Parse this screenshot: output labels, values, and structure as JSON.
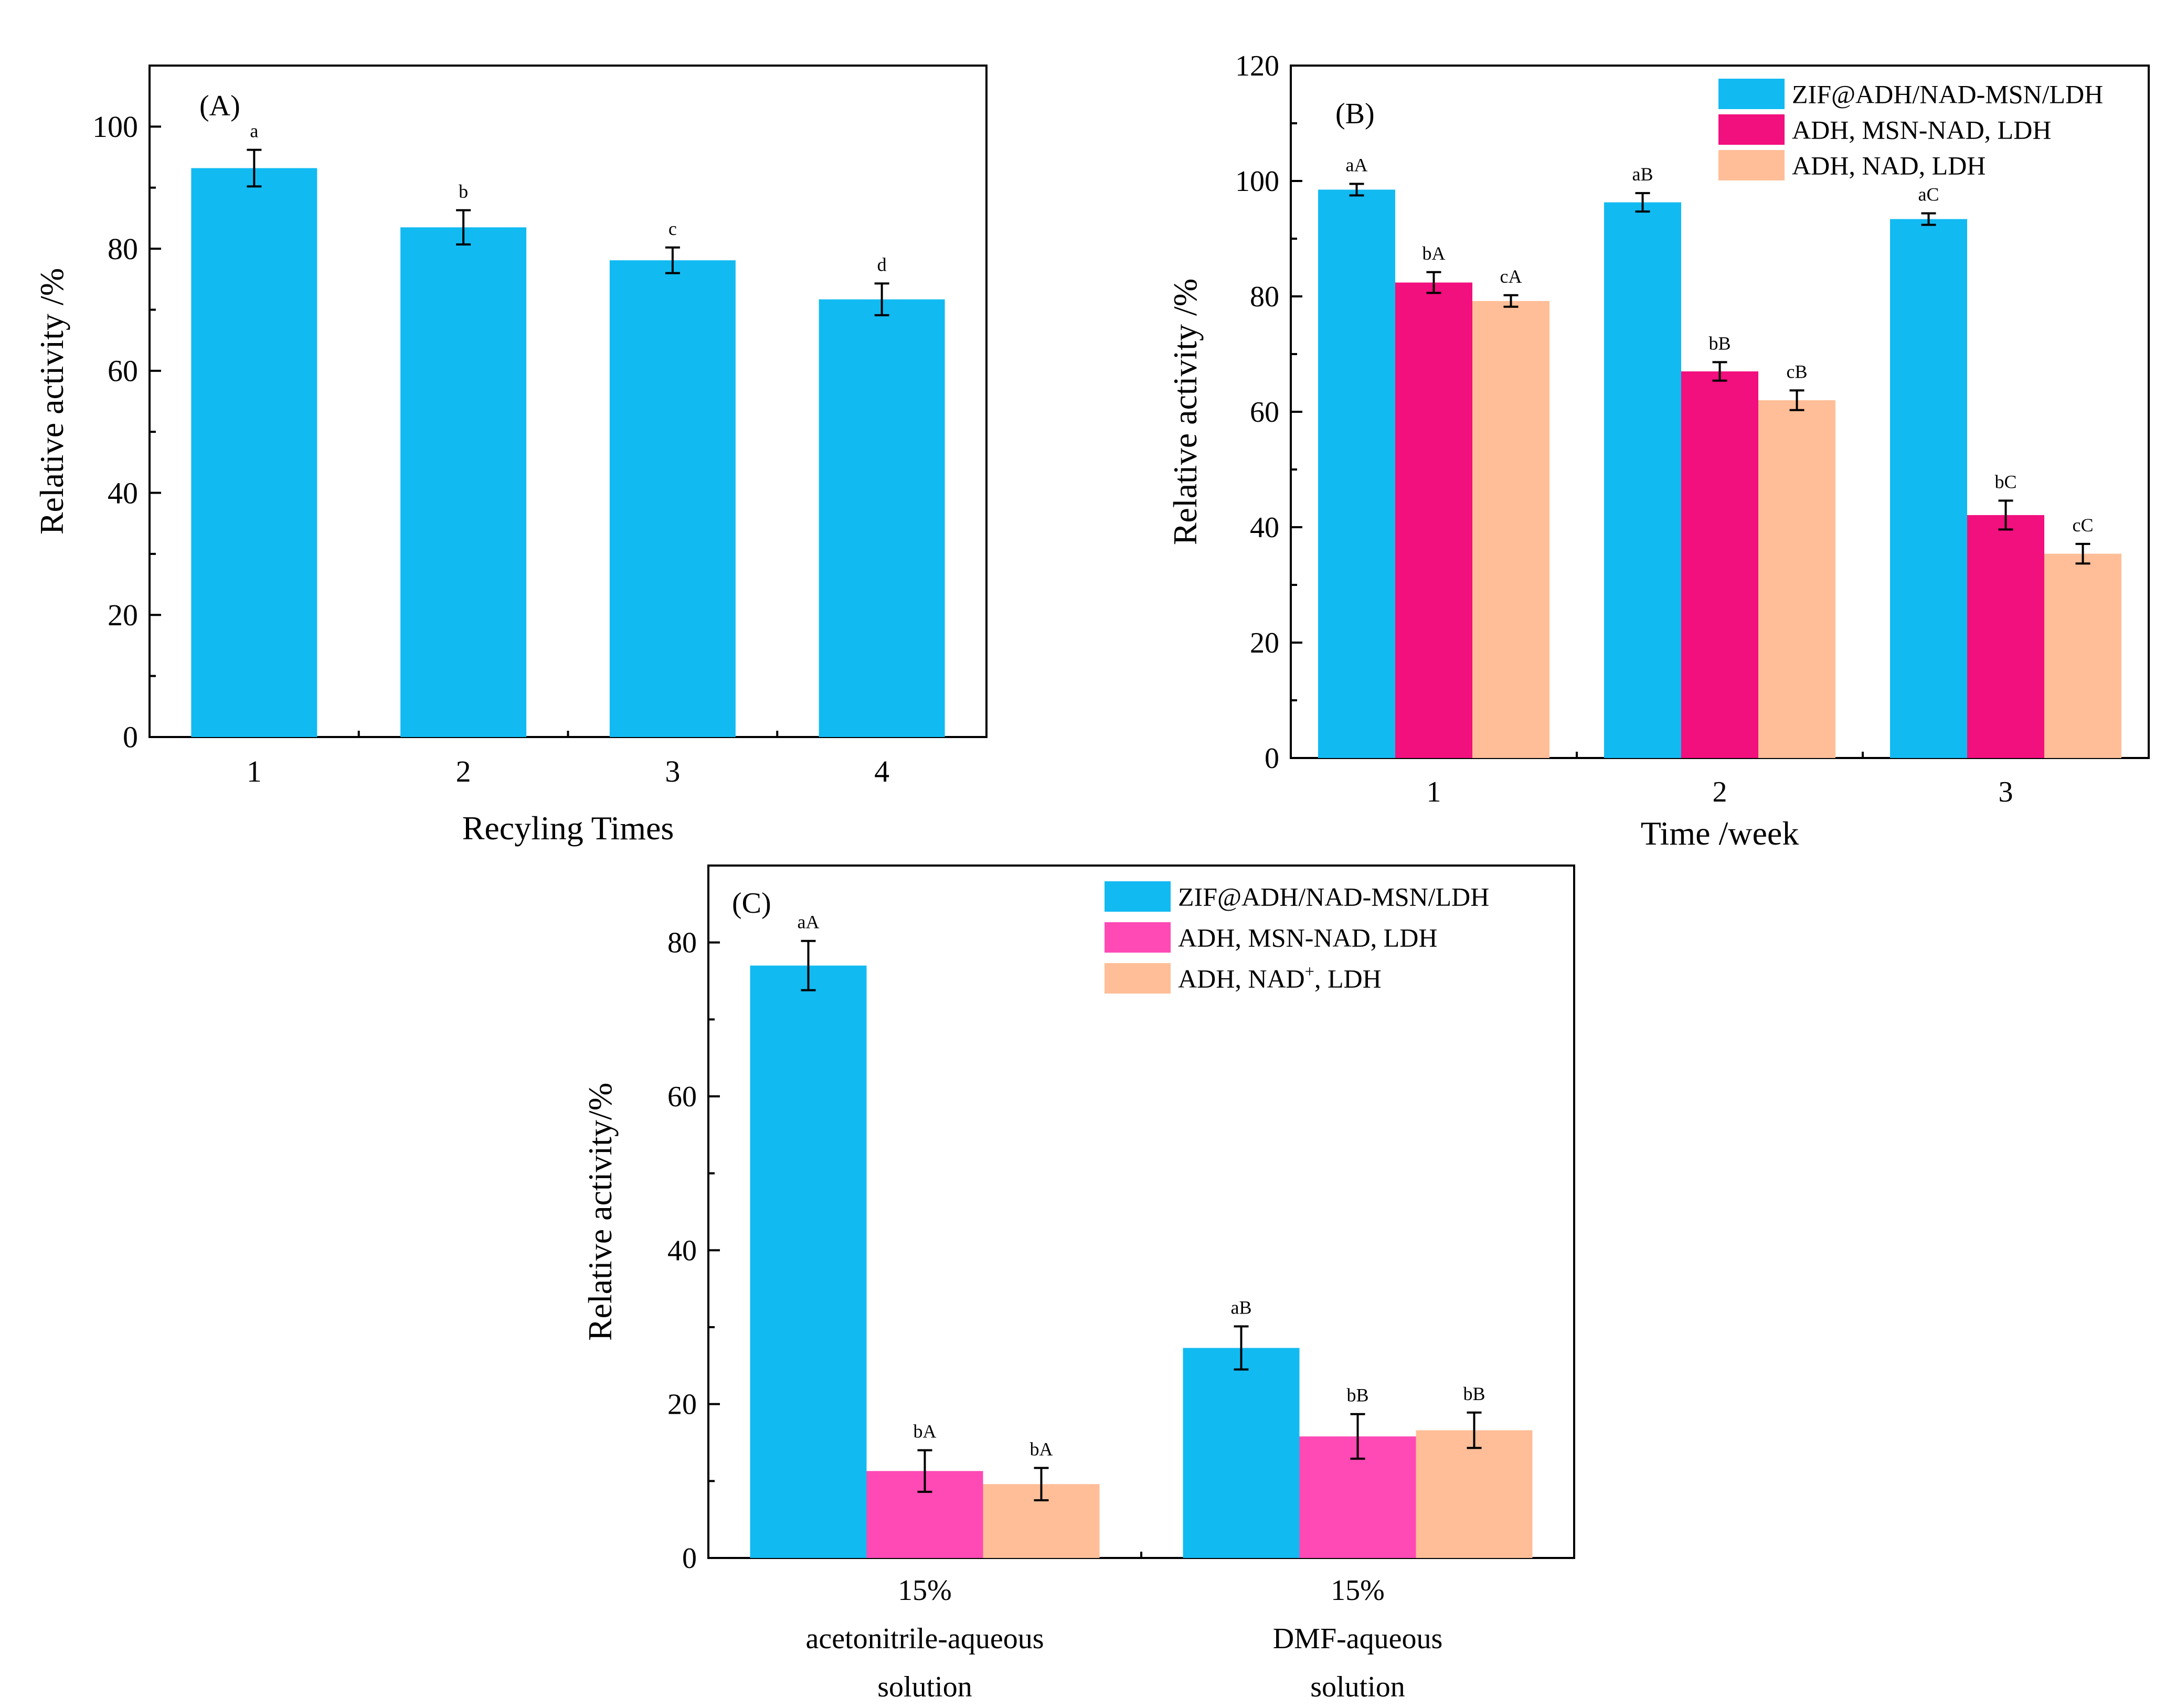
{
  "colors": {
    "blue": "#12BAF2",
    "pink_B": "#F20F7E",
    "pink_C": "#FF4AB5",
    "peach": "#FFBE97"
  },
  "chart_data": [
    {
      "panel": "(A)",
      "type": "bar",
      "categories": [
        "1",
        "2",
        "3",
        "4"
      ],
      "series": [
        {
          "name": "Relative activity",
          "color": "blue",
          "values": [
            93.2,
            83.5,
            78.1,
            71.7
          ],
          "errors": [
            3.0,
            2.8,
            2.1,
            2.6
          ],
          "labels": [
            "a",
            "b",
            "c",
            "d"
          ]
        }
      ],
      "xlabel": "Recyling Times",
      "ylabel": "Relative activity /%",
      "ylim": [
        0,
        110
      ],
      "yticks": [
        0,
        20,
        40,
        60,
        80,
        100
      ],
      "legend": null
    },
    {
      "panel": "(B)",
      "type": "bar",
      "categories": [
        "1",
        "2",
        "3"
      ],
      "series": [
        {
          "name": "ZIF@ADH/NAD-MSN/LDH",
          "color": "blue",
          "values": [
            98.5,
            96.3,
            93.4
          ],
          "errors": [
            1.0,
            1.6,
            1.0
          ],
          "labels": [
            "aA",
            "aB",
            "aC"
          ]
        },
        {
          "name": "ADH, MSN-NAD, LDH",
          "color": "pink_B",
          "values": [
            82.4,
            67.0,
            42.1
          ],
          "errors": [
            1.8,
            1.6,
            2.5
          ],
          "labels": [
            "bA",
            "bB",
            "bC"
          ]
        },
        {
          "name": "ADH, NAD, LDH",
          "color": "peach",
          "values": [
            79.2,
            62.0,
            35.4
          ],
          "errors": [
            1.0,
            1.7,
            1.7
          ],
          "labels": [
            "cA",
            "cB",
            "cC"
          ]
        }
      ],
      "xlabel": "Time /week",
      "ylabel": "Relative activity /%",
      "ylim": [
        0,
        120
      ],
      "yticks": [
        0,
        20,
        40,
        60,
        80,
        100,
        120
      ],
      "legend": "top-right"
    },
    {
      "panel": "(C)",
      "type": "bar",
      "categories": [
        [
          "15%",
          "acetonitrile-aqueous",
          "solution"
        ],
        [
          "15%",
          "DMF-aqueous",
          "solution"
        ]
      ],
      "series": [
        {
          "name": "ZIF@ADH/NAD-MSN/LDH",
          "color": "blue",
          "values": [
            77.0,
            27.3
          ],
          "errors": [
            3.2,
            2.8
          ],
          "labels": [
            "aA",
            "aB"
          ]
        },
        {
          "name": "ADH, MSN-NAD, LDH",
          "color": "pink_C",
          "values": [
            11.3,
            15.8
          ],
          "errors": [
            2.7,
            2.9
          ],
          "labels": [
            "bA",
            "bB"
          ]
        },
        {
          "name": "ADH, NAD",
          "name_sup": "+",
          "name_tail": ", LDH",
          "color": "peach",
          "values": [
            9.6,
            16.6
          ],
          "errors": [
            2.1,
            2.3
          ],
          "labels": [
            "bA",
            "bB"
          ]
        }
      ],
      "xlabel": "",
      "ylabel": "Relative activity/%",
      "ylim": [
        0,
        90
      ],
      "yticks": [
        0,
        20,
        40,
        60,
        80
      ],
      "legend": "top-right"
    }
  ]
}
